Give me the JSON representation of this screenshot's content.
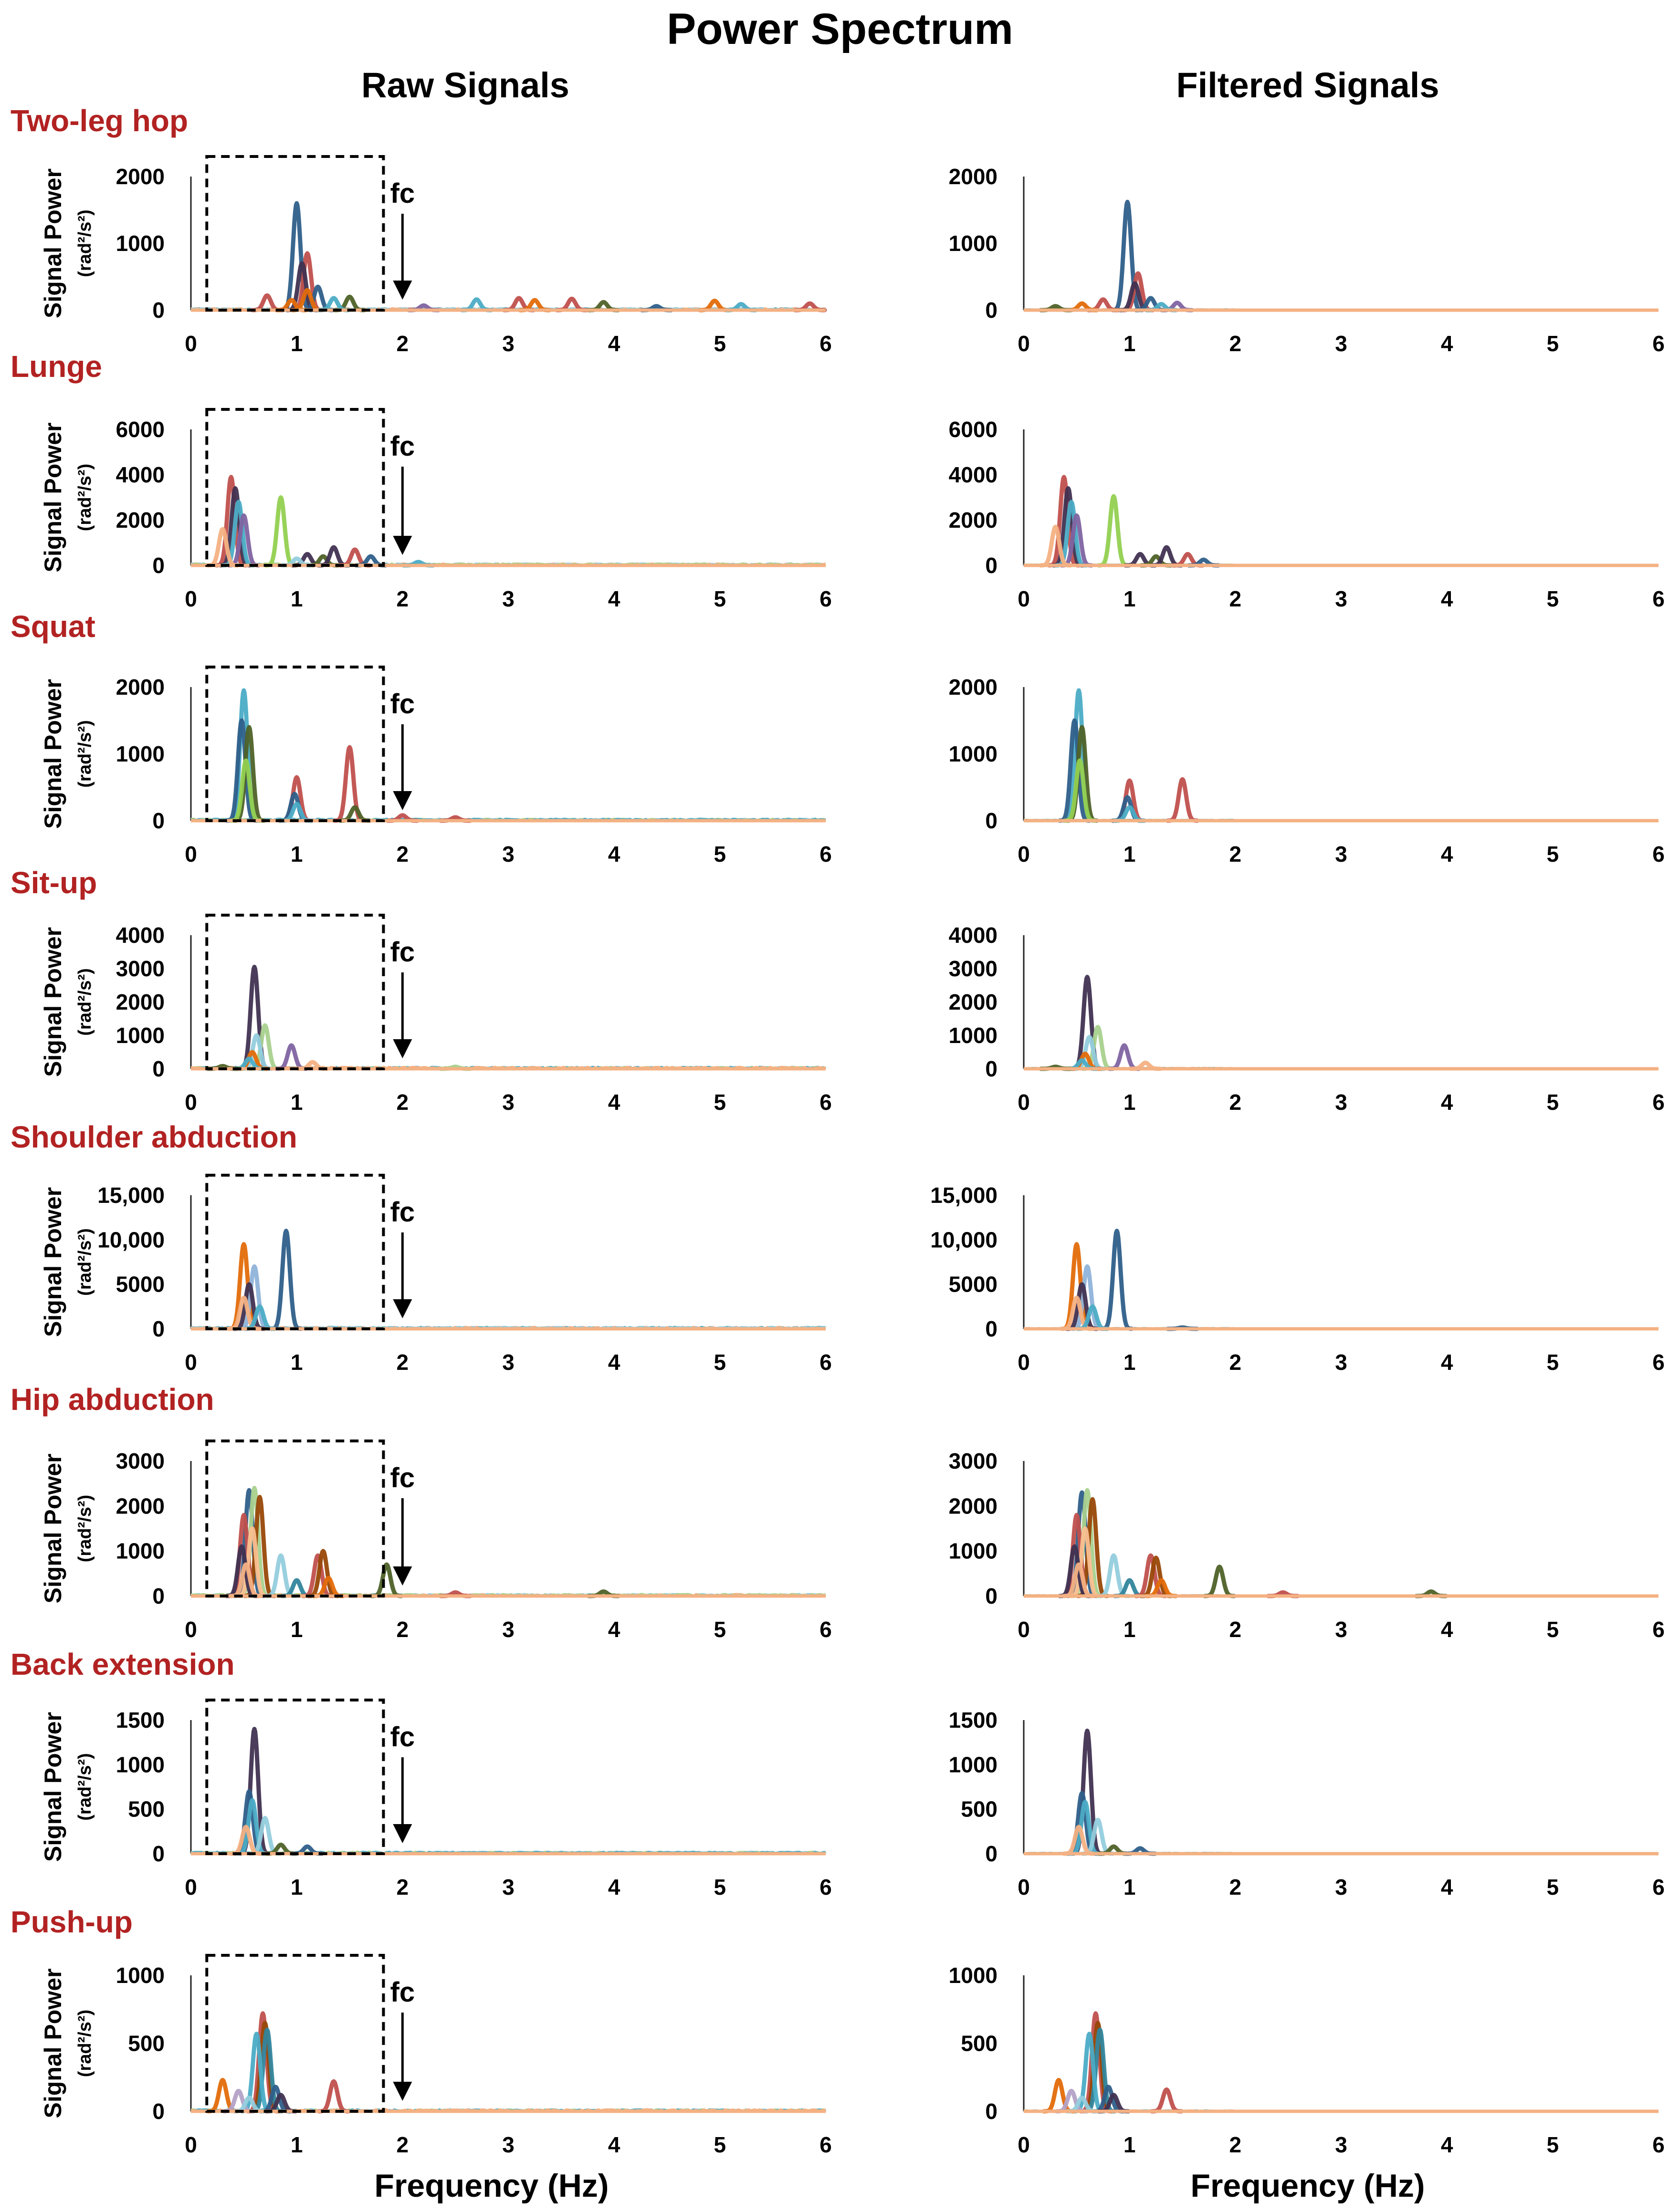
{
  "figure": {
    "title": "Power Spectrum",
    "columns": [
      "Raw Signals",
      "Filtered Signals"
    ],
    "xlabel": "Frequency (Hz)",
    "ylabel_main": "Signal Power",
    "ylabel_units": "(rad²/s²)",
    "cutoff_label": "fc",
    "colors": {
      "title_red": "#b22222",
      "series": [
        "#2e5f8a",
        "#c0504d",
        "#e36c0a",
        "#4f6228",
        "#403151",
        "#92d050",
        "#4bacc6",
        "#8064a2",
        "#f4b183",
        "#93cddd",
        "#a9d18e",
        "#8fb3d9",
        "#984807",
        "#31859c",
        "#fac090",
        "#b3a2c7"
      ]
    }
  },
  "chart_data": [
    {
      "type": "line",
      "exercise": "Two-leg hop",
      "xlim": [
        0,
        6
      ],
      "ylim": [
        0,
        2000
      ],
      "yticks": [
        0,
        1000,
        2000
      ],
      "ytick_labels": [
        "0",
        "1000",
        "2000"
      ],
      "xticks": [
        0,
        1,
        2,
        3,
        4,
        5,
        6
      ],
      "cutoff_hz": 2.0,
      "peaks_raw": [
        [
          1.0,
          1600,
          0
        ],
        [
          1.1,
          850,
          1
        ],
        [
          1.05,
          700,
          4
        ],
        [
          0.72,
          220,
          1
        ],
        [
          1.2,
          350,
          0
        ],
        [
          1.1,
          300,
          2
        ],
        [
          1.5,
          200,
          3
        ],
        [
          1.35,
          180,
          6
        ],
        [
          0.95,
          150,
          2
        ],
        [
          2.7,
          160,
          6
        ],
        [
          3.1,
          180,
          1
        ],
        [
          3.25,
          150,
          2
        ],
        [
          3.6,
          170,
          1
        ],
        [
          3.9,
          120,
          3
        ],
        [
          4.95,
          140,
          2
        ],
        [
          5.2,
          90,
          6
        ],
        [
          5.85,
          100,
          1
        ],
        [
          2.2,
          70,
          7
        ],
        [
          4.4,
          60,
          0
        ]
      ],
      "peaks_filtered": [
        [
          0.98,
          1620,
          0
        ],
        [
          1.08,
          550,
          1
        ],
        [
          1.05,
          400,
          4
        ],
        [
          0.75,
          160,
          1
        ],
        [
          1.2,
          180,
          0
        ],
        [
          0.55,
          100,
          2
        ],
        [
          1.45,
          110,
          7
        ],
        [
          1.3,
          90,
          6
        ],
        [
          0.3,
          60,
          3
        ]
      ]
    },
    {
      "type": "line",
      "exercise": "Lunge",
      "xlim": [
        0,
        6
      ],
      "ylim": [
        0,
        6000
      ],
      "yticks": [
        0,
        2000,
        4000,
        6000
      ],
      "ytick_labels": [
        "0",
        "2000",
        "4000",
        "6000"
      ],
      "xticks": [
        0,
        1,
        2,
        3,
        4,
        5,
        6
      ],
      "cutoff_hz": 2.0,
      "peaks_raw": [
        [
          0.38,
          3900,
          1
        ],
        [
          0.42,
          3400,
          4
        ],
        [
          0.45,
          2800,
          6
        ],
        [
          0.5,
          2200,
          7
        ],
        [
          0.3,
          1600,
          8
        ],
        [
          0.85,
          3000,
          5
        ],
        [
          1.1,
          500,
          4
        ],
        [
          1.25,
          400,
          3
        ],
        [
          1.35,
          800,
          4
        ],
        [
          1.55,
          700,
          1
        ],
        [
          1.7,
          400,
          0
        ],
        [
          2.15,
          150,
          6
        ],
        [
          1.0,
          300,
          9
        ]
      ],
      "peaks_filtered": [
        [
          0.38,
          3900,
          1
        ],
        [
          0.42,
          3400,
          4
        ],
        [
          0.45,
          2800,
          6
        ],
        [
          0.5,
          2200,
          7
        ],
        [
          0.3,
          1700,
          8
        ],
        [
          0.85,
          3050,
          5
        ],
        [
          1.1,
          500,
          4
        ],
        [
          1.25,
          400,
          3
        ],
        [
          1.35,
          800,
          4
        ],
        [
          1.55,
          500,
          1
        ],
        [
          1.7,
          250,
          0
        ]
      ]
    },
    {
      "type": "line",
      "exercise": "Squat",
      "xlim": [
        0,
        6
      ],
      "ylim": [
        0,
        2000
      ],
      "yticks": [
        0,
        1000,
        2000
      ],
      "ytick_labels": [
        "0",
        "1000",
        "2000"
      ],
      "xticks": [
        0,
        1,
        2,
        3,
        4,
        5,
        6
      ],
      "cutoff_hz": 2.0,
      "peaks_raw": [
        [
          0.5,
          1950,
          6
        ],
        [
          0.48,
          1500,
          0
        ],
        [
          0.55,
          1400,
          3
        ],
        [
          0.52,
          900,
          5
        ],
        [
          1.0,
          650,
          1
        ],
        [
          0.98,
          400,
          0
        ],
        [
          1.0,
          250,
          6
        ],
        [
          1.5,
          1100,
          1
        ],
        [
          1.55,
          200,
          3
        ],
        [
          2.0,
          80,
          1
        ],
        [
          2.5,
          50,
          1
        ]
      ],
      "peaks_filtered": [
        [
          0.52,
          1950,
          6
        ],
        [
          0.48,
          1500,
          0
        ],
        [
          0.55,
          1400,
          3
        ],
        [
          0.53,
          900,
          5
        ],
        [
          1.0,
          600,
          1
        ],
        [
          0.98,
          350,
          0
        ],
        [
          1.0,
          200,
          6
        ],
        [
          1.5,
          620,
          1
        ]
      ]
    },
    {
      "type": "line",
      "exercise": "Sit-up",
      "xlim": [
        0,
        6
      ],
      "ylim": [
        0,
        4000
      ],
      "yticks": [
        0,
        1000,
        2000,
        3000,
        4000
      ],
      "ytick_labels": [
        "0",
        "1000",
        "2000",
        "3000",
        "4000"
      ],
      "xticks": [
        0,
        1,
        2,
        3,
        4,
        5,
        6
      ],
      "cutoff_hz": 2.0,
      "peaks_raw": [
        [
          0.6,
          3050,
          4
        ],
        [
          0.7,
          1300,
          10
        ],
        [
          0.62,
          1000,
          9
        ],
        [
          0.58,
          500,
          2
        ],
        [
          0.55,
          300,
          6
        ],
        [
          0.95,
          700,
          7
        ],
        [
          1.15,
          200,
          8
        ],
        [
          0.3,
          80,
          3
        ],
        [
          2.5,
          60,
          10
        ]
      ],
      "peaks_filtered": [
        [
          0.6,
          2750,
          4
        ],
        [
          0.7,
          1250,
          10
        ],
        [
          0.62,
          950,
          9
        ],
        [
          0.58,
          450,
          2
        ],
        [
          0.55,
          250,
          6
        ],
        [
          0.95,
          700,
          7
        ],
        [
          1.15,
          180,
          8
        ],
        [
          0.3,
          60,
          3
        ]
      ]
    },
    {
      "type": "line",
      "exercise": "Shoulder abduction",
      "xlim": [
        0,
        6
      ],
      "ylim": [
        0,
        15000
      ],
      "yticks": [
        0,
        5000,
        10000,
        15000
      ],
      "ytick_labels": [
        "0",
        "5000",
        "10,000",
        "15,000"
      ],
      "xticks": [
        0,
        1,
        2,
        3,
        4,
        5,
        6
      ],
      "cutoff_hz": 2.0,
      "peaks_raw": [
        [
          0.5,
          9500,
          2
        ],
        [
          0.9,
          11000,
          0
        ],
        [
          0.6,
          7000,
          11
        ],
        [
          0.55,
          5000,
          4
        ],
        [
          0.5,
          3500,
          8
        ],
        [
          0.65,
          2500,
          6
        ]
      ],
      "peaks_filtered": [
        [
          0.5,
          9500,
          2
        ],
        [
          0.88,
          11000,
          0
        ],
        [
          0.6,
          7000,
          11
        ],
        [
          0.55,
          5000,
          4
        ],
        [
          0.5,
          3500,
          8
        ],
        [
          0.65,
          2500,
          6
        ],
        [
          1.5,
          150,
          0
        ]
      ]
    },
    {
      "type": "line",
      "exercise": "Hip abduction",
      "xlim": [
        0,
        6
      ],
      "ylim": [
        0,
        3000
      ],
      "yticks": [
        0,
        1000,
        2000,
        3000
      ],
      "ytick_labels": [
        "0",
        "1000",
        "2000",
        "3000"
      ],
      "xticks": [
        0,
        1,
        2,
        3,
        4,
        5,
        6
      ],
      "cutoff_hz": 2.0,
      "peaks_raw": [
        [
          0.55,
          2350,
          0
        ],
        [
          0.6,
          2400,
          10
        ],
        [
          0.65,
          2200,
          12
        ],
        [
          0.5,
          1800,
          1
        ],
        [
          0.58,
          1500,
          14
        ],
        [
          0.48,
          1100,
          4
        ],
        [
          0.85,
          900,
          9
        ],
        [
          1.0,
          350,
          13
        ],
        [
          1.2,
          900,
          1
        ],
        [
          1.25,
          1000,
          12
        ],
        [
          1.3,
          400,
          2
        ],
        [
          1.85,
          700,
          3
        ],
        [
          2.5,
          80,
          1
        ],
        [
          3.9,
          100,
          3
        ],
        [
          0.52,
          700,
          8
        ]
      ],
      "peaks_filtered": [
        [
          0.55,
          2300,
          0
        ],
        [
          0.6,
          2350,
          10
        ],
        [
          0.65,
          2150,
          12
        ],
        [
          0.5,
          1800,
          1
        ],
        [
          0.58,
          1500,
          14
        ],
        [
          0.48,
          1100,
          4
        ],
        [
          0.85,
          900,
          9
        ],
        [
          1.0,
          350,
          13
        ],
        [
          1.2,
          900,
          1
        ],
        [
          1.25,
          850,
          12
        ],
        [
          1.3,
          350,
          2
        ],
        [
          1.85,
          650,
          3
        ],
        [
          2.45,
          80,
          1
        ],
        [
          3.85,
          100,
          3
        ],
        [
          0.52,
          700,
          8
        ]
      ]
    },
    {
      "type": "line",
      "exercise": "Back extension",
      "xlim": [
        0,
        6
      ],
      "ylim": [
        0,
        1500
      ],
      "yticks": [
        0,
        500,
        1000,
        1500
      ],
      "ytick_labels": [
        "0",
        "500",
        "1000",
        "1500"
      ],
      "xticks": [
        0,
        1,
        2,
        3,
        4,
        5,
        6
      ],
      "cutoff_hz": 2.0,
      "peaks_raw": [
        [
          0.6,
          1400,
          4
        ],
        [
          0.55,
          700,
          0
        ],
        [
          0.58,
          600,
          6
        ],
        [
          0.7,
          400,
          9
        ],
        [
          0.52,
          300,
          8
        ],
        [
          0.85,
          100,
          3
        ],
        [
          1.1,
          80,
          0
        ]
      ],
      "peaks_filtered": [
        [
          0.6,
          1380,
          4
        ],
        [
          0.55,
          680,
          0
        ],
        [
          0.58,
          580,
          6
        ],
        [
          0.7,
          380,
          9
        ],
        [
          0.52,
          300,
          8
        ],
        [
          0.85,
          80,
          3
        ],
        [
          1.1,
          60,
          0
        ]
      ]
    },
    {
      "type": "line",
      "exercise": "Push-up",
      "xlim": [
        0,
        6
      ],
      "ylim": [
        0,
        1000
      ],
      "yticks": [
        0,
        500,
        1000
      ],
      "ytick_labels": [
        "0",
        "500",
        "1000"
      ],
      "xticks": [
        0,
        1,
        2,
        3,
        4,
        5,
        6
      ],
      "cutoff_hz": 2.0,
      "peaks_raw": [
        [
          0.68,
          720,
          1
        ],
        [
          0.7,
          650,
          12
        ],
        [
          0.72,
          600,
          13
        ],
        [
          0.62,
          570,
          6
        ],
        [
          0.3,
          230,
          2
        ],
        [
          0.45,
          150,
          15
        ],
        [
          0.8,
          180,
          0
        ],
        [
          0.85,
          120,
          4
        ],
        [
          1.35,
          220,
          1
        ],
        [
          0.55,
          100,
          9
        ]
      ],
      "peaks_filtered": [
        [
          0.68,
          720,
          1
        ],
        [
          0.7,
          650,
          12
        ],
        [
          0.72,
          600,
          13
        ],
        [
          0.62,
          570,
          6
        ],
        [
          0.33,
          230,
          2
        ],
        [
          0.45,
          150,
          15
        ],
        [
          0.8,
          180,
          0
        ],
        [
          0.85,
          120,
          4
        ],
        [
          1.35,
          160,
          1
        ],
        [
          0.55,
          100,
          9
        ]
      ]
    }
  ]
}
